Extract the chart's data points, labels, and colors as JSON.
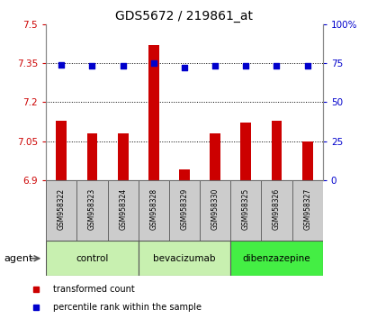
{
  "title": "GDS5672 / 219861_at",
  "samples": [
    "GSM958322",
    "GSM958323",
    "GSM958324",
    "GSM958328",
    "GSM958329",
    "GSM958330",
    "GSM958325",
    "GSM958326",
    "GSM958327"
  ],
  "bar_values": [
    7.13,
    7.08,
    7.08,
    7.42,
    6.94,
    7.08,
    7.12,
    7.13,
    7.05
  ],
  "dot_values": [
    74,
    73,
    73,
    75,
    72,
    73,
    73,
    73,
    73
  ],
  "groups": [
    {
      "label": "control",
      "indices": [
        0,
        1,
        2
      ],
      "color": "#c8f0b0"
    },
    {
      "label": "bevacizumab",
      "indices": [
        3,
        4,
        5
      ],
      "color": "#c8f0b0"
    },
    {
      "label": "dibenzazepine",
      "indices": [
        6,
        7,
        8
      ],
      "color": "#44ee44"
    }
  ],
  "ylim_left": [
    6.9,
    7.5
  ],
  "ylim_right": [
    0,
    100
  ],
  "yticks_left": [
    6.9,
    7.05,
    7.2,
    7.35,
    7.5
  ],
  "yticks_right": [
    0,
    25,
    50,
    75,
    100
  ],
  "bar_color": "#cc0000",
  "dot_color": "#0000cc",
  "bar_baseline": 6.9,
  "grid_lines": [
    7.05,
    7.2,
    7.35
  ],
  "plot_bg_color": "#ffffff",
  "sample_box_color": "#cccccc",
  "legend_bar_label": "transformed count",
  "legend_dot_label": "percentile rank within the sample",
  "agent_label": "agent"
}
